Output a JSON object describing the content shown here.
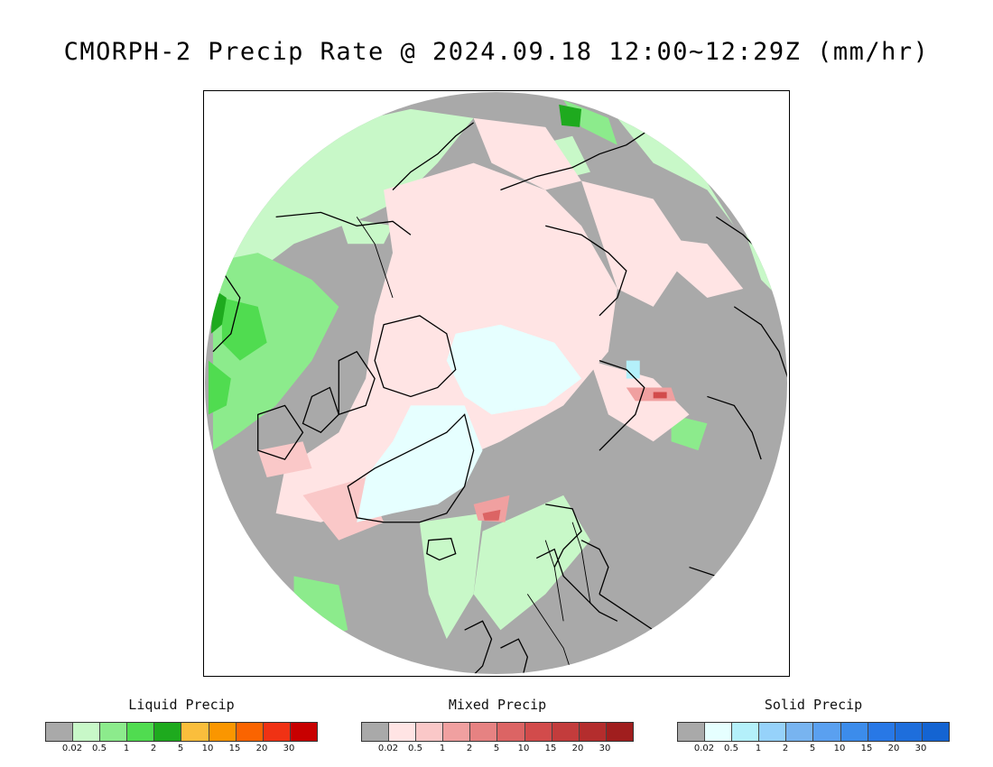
{
  "title": "CMORPH-2 Precip Rate @ 2024.09.18 12:00~12:29Z (mm/hr)",
  "map": {
    "projection": "north-polar-stereographic",
    "background_color": "#a9a9a9",
    "coastline_color": "#000000"
  },
  "legends": [
    {
      "id": "liquid",
      "title": "Liquid Precip",
      "colors": [
        "#a9a9a9",
        "#c8f8c8",
        "#8ceb8c",
        "#50dc50",
        "#1eaa1e",
        "#fabe3c",
        "#fa9600",
        "#fa6400",
        "#f03214",
        "#c80000"
      ],
      "ticks": [
        "0.02",
        "0.5",
        "1",
        "2",
        "5",
        "10",
        "15",
        "20",
        "30"
      ]
    },
    {
      "id": "mixed",
      "title": "Mixed Precip",
      "colors": [
        "#a9a9a9",
        "#ffe4e4",
        "#fac8c8",
        "#f0a0a0",
        "#e68282",
        "#dc6464",
        "#d24b4b",
        "#c33c3c",
        "#b42d2d",
        "#a01e1e"
      ],
      "ticks": [
        "0.02",
        "0.5",
        "1",
        "2",
        "5",
        "10",
        "15",
        "20",
        "30"
      ]
    },
    {
      "id": "solid",
      "title": "Solid Precip",
      "colors": [
        "#a9a9a9",
        "#e6ffff",
        "#b4f0fa",
        "#96d2fa",
        "#78b4f0",
        "#5aa0f0",
        "#3c8ceb",
        "#2878e6",
        "#1e6edc",
        "#1464d2"
      ],
      "ticks": [
        "0.02",
        "0.5",
        "1",
        "2",
        "5",
        "10",
        "15",
        "20",
        "30"
      ]
    }
  ]
}
